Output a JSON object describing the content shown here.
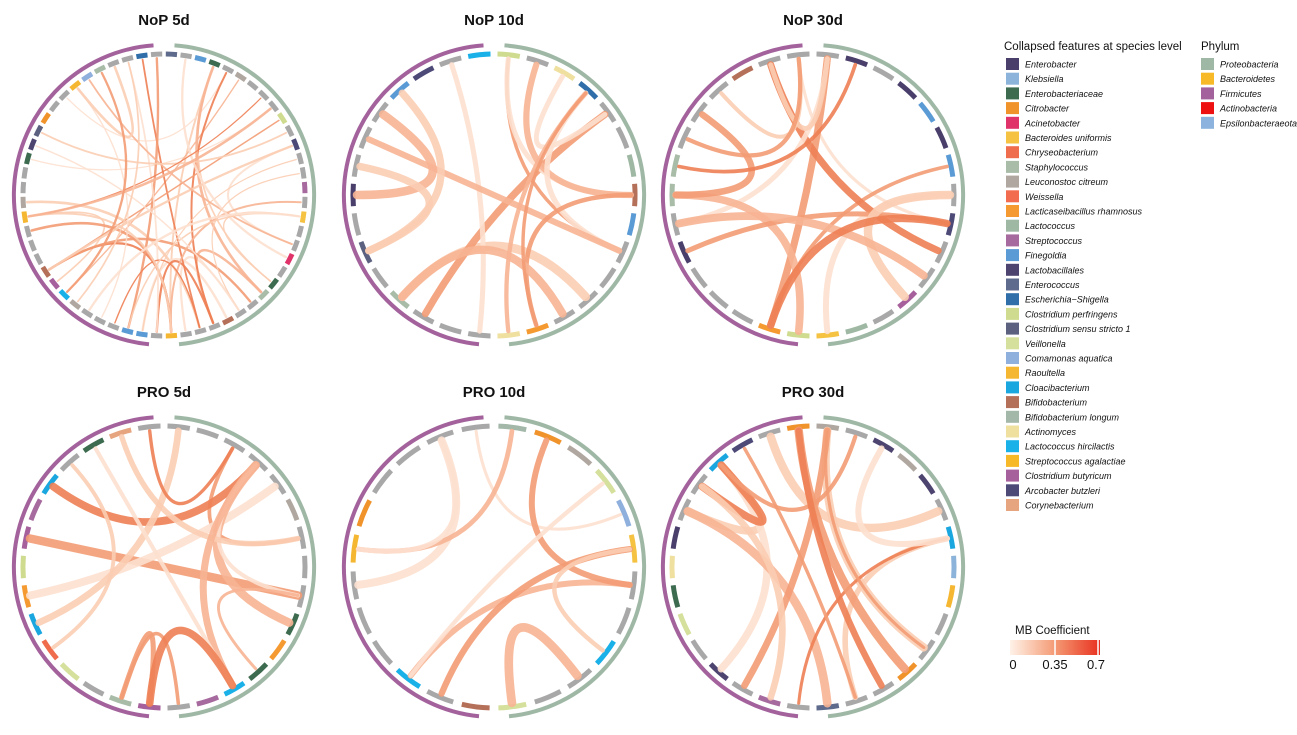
{
  "chart_data": {
    "type": "chord",
    "panels": [
      {
        "title": "NoP 5d",
        "density": "high"
      },
      {
        "title": "NoP 10d",
        "density": "medium"
      },
      {
        "title": "NoP 30d",
        "density": "medium"
      },
      {
        "title": "PRO 5d",
        "density": "medium"
      },
      {
        "title": "PRO 10d",
        "density": "low"
      },
      {
        "title": "PRO 30d",
        "density": "medium"
      }
    ],
    "feature_legend": {
      "title": "Collapsed features at species level",
      "items": [
        {
          "label": "Enterobacter",
          "color": "#4a3f6b"
        },
        {
          "label": "Klebsiella",
          "color": "#8cb3d9"
        },
        {
          "label": "Enterobacteriaceae",
          "color": "#3d6b4f"
        },
        {
          "label": "Citrobacter",
          "color": "#f0932b"
        },
        {
          "label": "Acinetobacter",
          "color": "#e0336a"
        },
        {
          "label": "Bacteroides uniformis",
          "color": "#f5c242"
        },
        {
          "label": "Chryseobacterium",
          "color": "#ef6c4c"
        },
        {
          "label": "Staphylococcus",
          "color": "#a8bca8"
        },
        {
          "label": "Leuconostoc citreum",
          "color": "#b0a8a0"
        },
        {
          "label": "Weissella",
          "color": "#f26d4f"
        },
        {
          "label": "Lacticaseibacillus rhamnosus",
          "color": "#f59a30"
        },
        {
          "label": "Lactococcus",
          "color": "#9fb8a4"
        },
        {
          "label": "Streptococcus",
          "color": "#a66a9e"
        },
        {
          "label": "Finegoldia",
          "color": "#5b9bd5"
        },
        {
          "label": "Lactobacillales",
          "color": "#4d4470"
        },
        {
          "label": "Enterococcus",
          "color": "#5e6b8c"
        },
        {
          "label": "Escherichia−Shigella",
          "color": "#2f6ea8"
        },
        {
          "label": "Clostridium perfringens",
          "color": "#cfdc8f"
        },
        {
          "label": "Clostridium sensu stricto 1",
          "color": "#5c6180"
        },
        {
          "label": "Veillonella",
          "color": "#d4e09b"
        },
        {
          "label": "Comamonas aquatica",
          "color": "#8fb0dd"
        },
        {
          "label": "Raoultella",
          "color": "#f5b731"
        },
        {
          "label": "Cloacibacterium",
          "color": "#1aa7e0"
        },
        {
          "label": "Bifidobacterium",
          "color": "#b5705a"
        },
        {
          "label": "Bifidobacterium longum",
          "color": "#a3b8a8"
        },
        {
          "label": "Actinomyces",
          "color": "#efe0a0"
        },
        {
          "label": "Lactococcus hircilactis",
          "color": "#1ab0e8"
        },
        {
          "label": "Streptococcus agalactiae",
          "color": "#f7b928"
        },
        {
          "label": "Clostridium butyricum",
          "color": "#a6609c"
        },
        {
          "label": "Arcobacter butzleri",
          "color": "#4d4a78"
        },
        {
          "label": "Corynebacterium",
          "color": "#e6a47f"
        }
      ]
    },
    "phylum_legend": {
      "title": "Phylum",
      "items": [
        {
          "label": "Proteobacteria",
          "color": "#9fb8a6"
        },
        {
          "label": "Bacteroidetes",
          "color": "#f7b928"
        },
        {
          "label": "Firmicutes",
          "color": "#a3629c"
        },
        {
          "label": "Actinobacteria",
          "color": "#ee1111"
        },
        {
          "label": "Epsilonbacteraeota",
          "color": "#8cb3dd"
        }
      ]
    },
    "colorbar": {
      "title": "MB Coefficient",
      "ticks": [
        "0",
        "0.35",
        "0.7"
      ],
      "min": 0,
      "max": 0.7,
      "colors": [
        "#fff2e8",
        "#f49a74",
        "#e8311f"
      ]
    }
  }
}
